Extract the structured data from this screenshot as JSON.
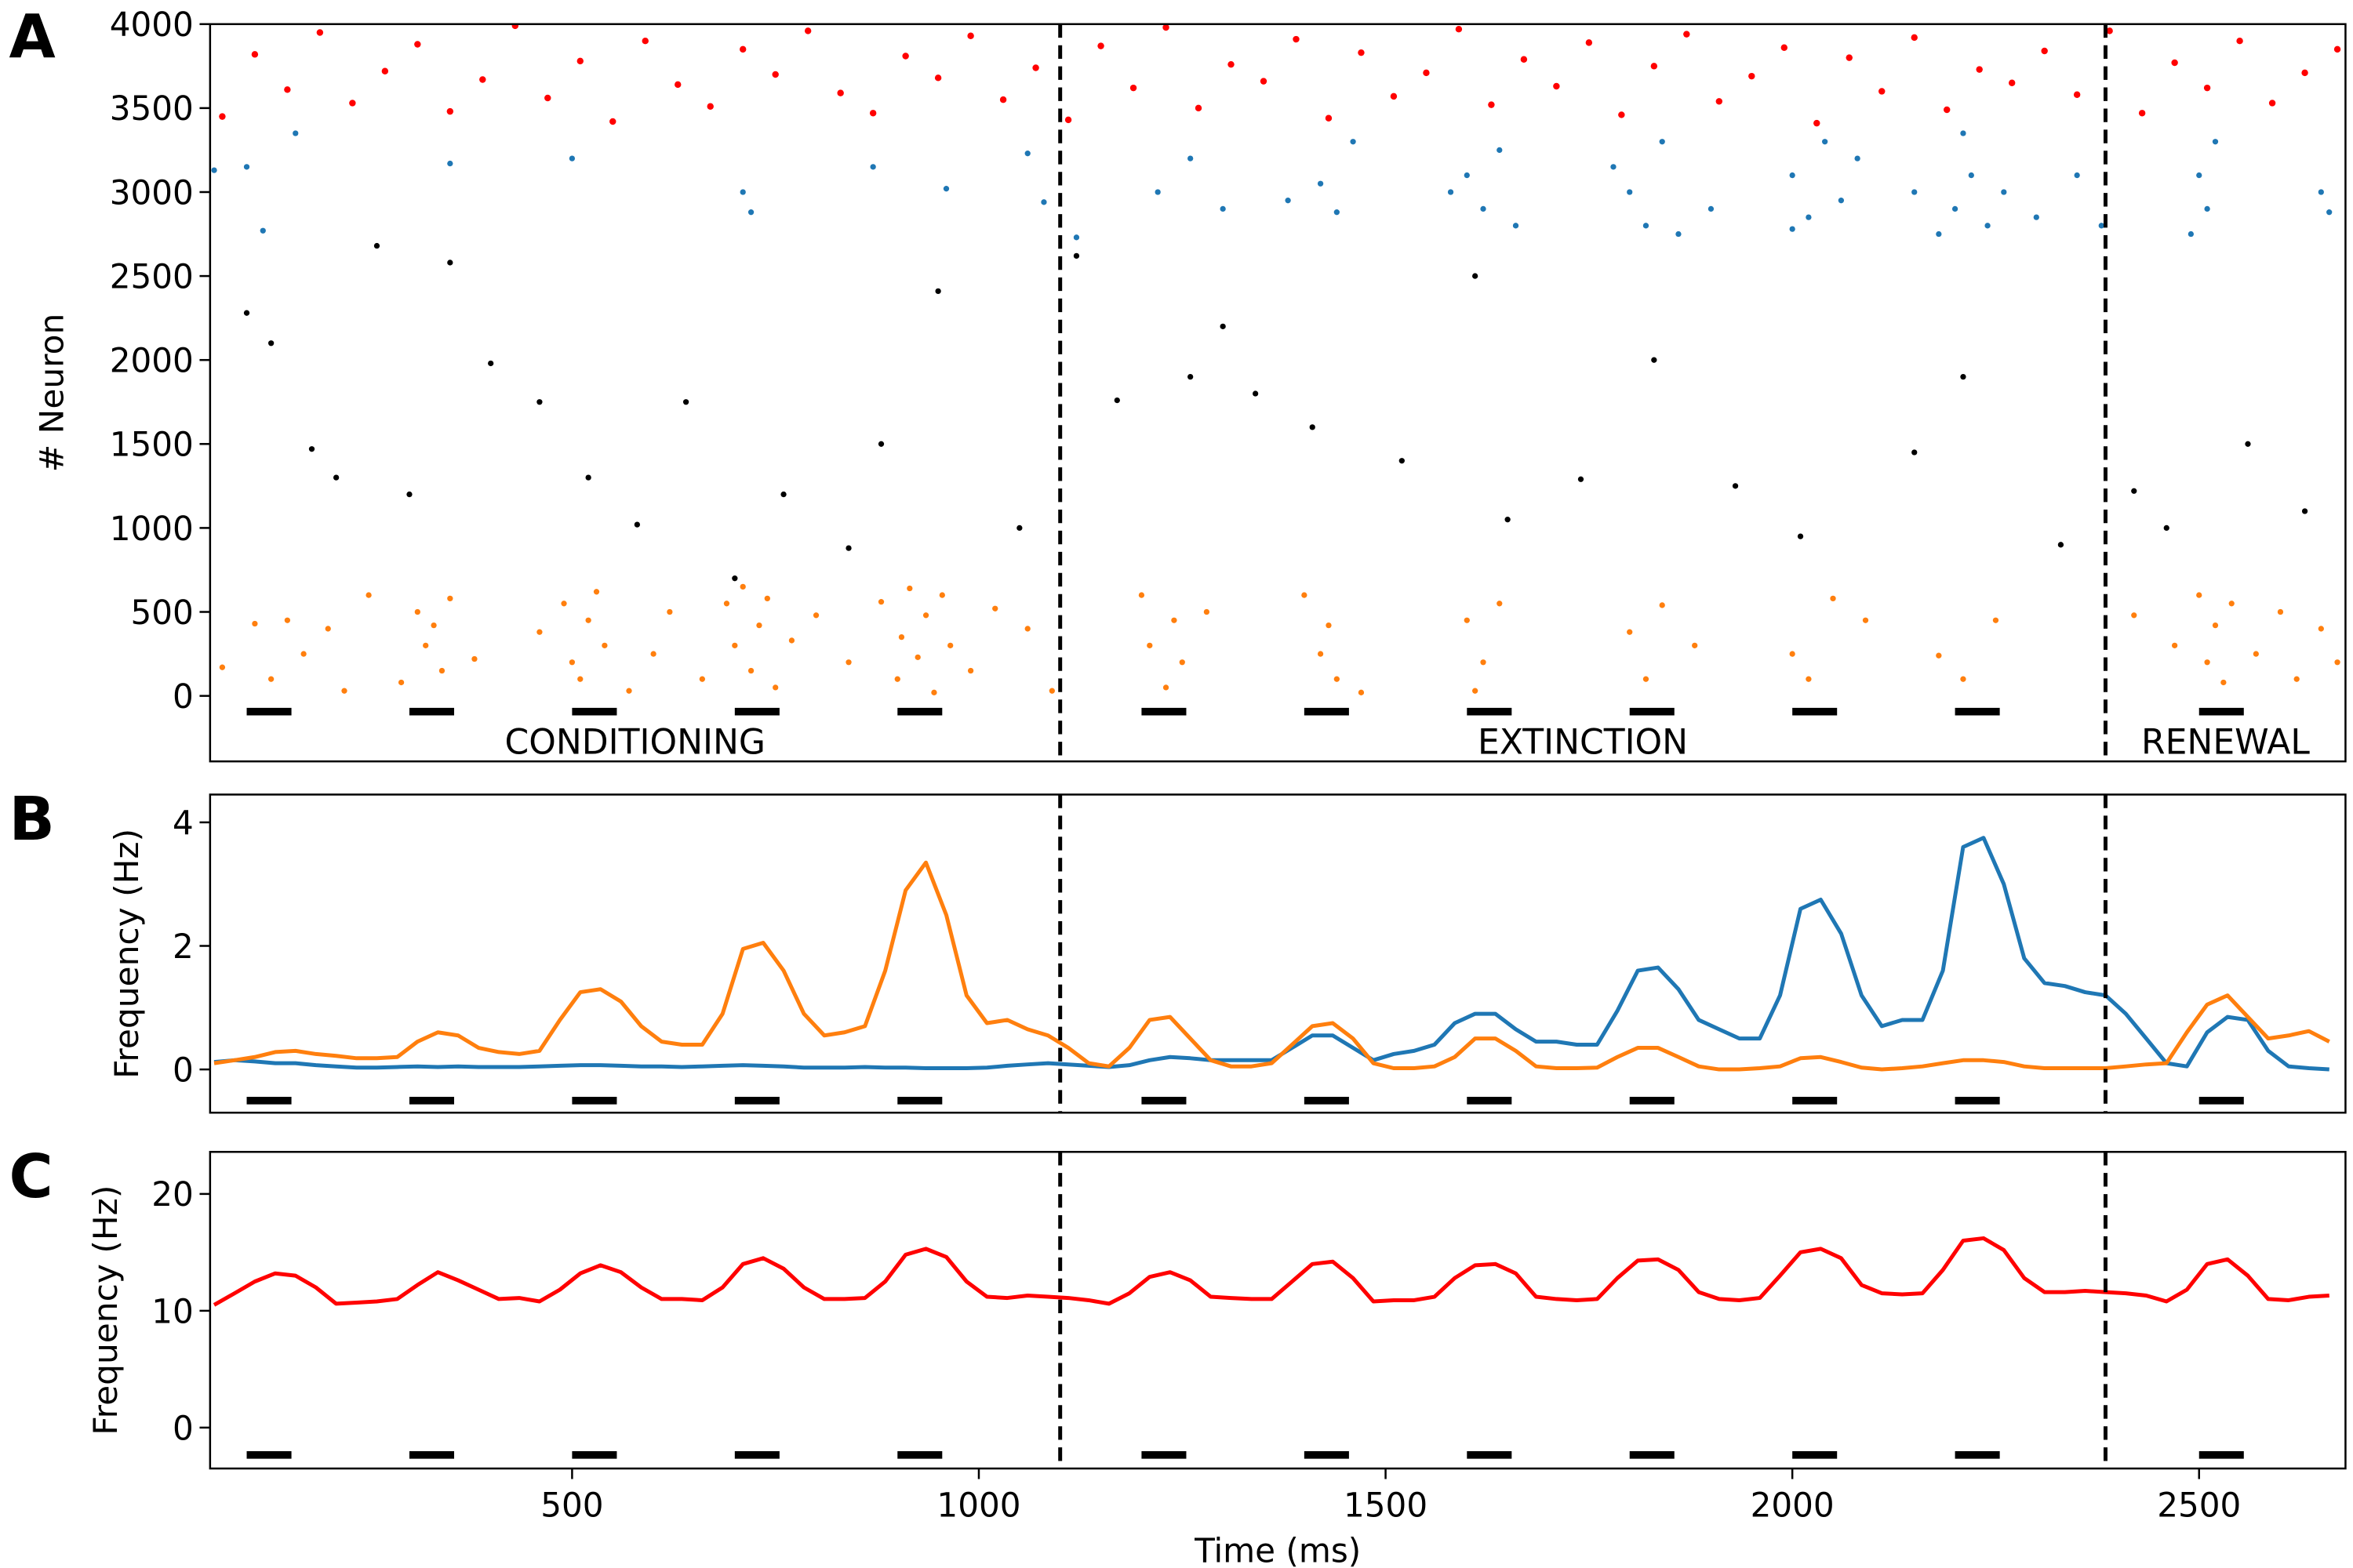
{
  "stimuli": [
    {
      "start": 100,
      "end": 155
    },
    {
      "start": 300,
      "end": 355
    },
    {
      "start": 500,
      "end": 555
    },
    {
      "start": 700,
      "end": 755
    },
    {
      "start": 900,
      "end": 955
    },
    {
      "start": 1200,
      "end": 1255
    },
    {
      "start": 1400,
      "end": 1455
    },
    {
      "start": 1600,
      "end": 1655
    },
    {
      "start": 1800,
      "end": 1855
    },
    {
      "start": 2000,
      "end": 2055
    },
    {
      "start": 2200,
      "end": 2255
    },
    {
      "start": 2500,
      "end": 2555
    }
  ],
  "boundaries": [
    1100,
    2385
  ],
  "chart_data": [
    {
      "type": "scatter",
      "panel": "A",
      "ylabel": "# Neuron",
      "xlim": [
        55,
        2680
      ],
      "ylim": [
        -390,
        4000
      ],
      "yticks": [
        0,
        500,
        1000,
        1500,
        2000,
        2500,
        3000,
        3500,
        4000
      ],
      "phases": [
        {
          "label": "CONDITIONING"
        },
        {
          "label": "EXTINCTION"
        },
        {
          "label": "RENEWAL"
        }
      ],
      "series": [
        {
          "color": "#ff0000",
          "x": [
            70,
            110,
            150,
            190,
            230,
            270,
            310,
            350,
            390,
            430,
            470,
            510,
            550,
            590,
            630,
            670,
            710,
            750,
            790,
            830,
            870,
            910,
            950,
            990,
            1030,
            1070,
            1110,
            1150,
            1190,
            1230,
            1270,
            1310,
            1350,
            1390,
            1430,
            1470,
            1510,
            1550,
            1590,
            1630,
            1670,
            1710,
            1750,
            1790,
            1830,
            1870,
            1910,
            1950,
            1990,
            2030,
            2070,
            2110,
            2150,
            2190,
            2230,
            2270,
            2310,
            2350,
            2390,
            2430,
            2470,
            2510,
            2550,
            2590,
            2630,
            2670
          ],
          "y": [
            3450,
            3820,
            3610,
            3950,
            3530,
            3720,
            3880,
            3480,
            3670,
            3990,
            3560,
            3780,
            3420,
            3900,
            3640,
            3510,
            3850,
            3700,
            3960,
            3590,
            3470,
            3810,
            3680,
            3930,
            3550,
            3740,
            3430,
            3870,
            3620,
            3980,
            3500,
            3760,
            3660,
            3910,
            3440,
            3830,
            3570,
            3710,
            3970,
            3520,
            3790,
            3630,
            3890,
            3460,
            3750,
            3940,
            3540,
            3690,
            3860,
            3410,
            3800,
            3600,
            3920,
            3490,
            3730,
            3650,
            3840,
            3580,
            3960,
            3470,
            3770,
            3620,
            3900,
            3530,
            3710,
            3850
          ]
        },
        {
          "color": "#1f77b4",
          "x": [
            60,
            100,
            120,
            160,
            350,
            500,
            710,
            720,
            870,
            960,
            1060,
            1080,
            1120,
            1220,
            1260,
            1300,
            1420,
            1440,
            1460,
            1380,
            1600,
            1620,
            1640,
            1660,
            1580,
            1800,
            1820,
            1840,
            1860,
            1780,
            1900,
            2000,
            2020,
            2040,
            2060,
            2000,
            2080,
            2150,
            2200,
            2220,
            2240,
            2210,
            2260,
            2180,
            2300,
            2350,
            2380,
            2500,
            2510,
            2520,
            2490,
            2650,
            2660
          ],
          "y": [
            3130,
            3150,
            2770,
            3350,
            3170,
            3200,
            3000,
            2880,
            3150,
            3020,
            3230,
            2940,
            2730,
            3000,
            3200,
            2900,
            3050,
            2880,
            3300,
            2950,
            3100,
            2900,
            3250,
            2800,
            3000,
            3000,
            2800,
            3300,
            2750,
            3150,
            2900,
            3100,
            2850,
            3300,
            2950,
            2780,
            3200,
            3000,
            2900,
            3100,
            2800,
            3350,
            3000,
            2750,
            2850,
            3100,
            2800,
            3100,
            2900,
            3300,
            2750,
            3000,
            2880
          ]
        },
        {
          "color": "#000000",
          "x": [
            100,
            130,
            180,
            210,
            260,
            300,
            350,
            400,
            460,
            520,
            580,
            640,
            700,
            760,
            840,
            880,
            950,
            1050,
            1120,
            1170,
            1260,
            1300,
            1340,
            1410,
            1520,
            1610,
            1650,
            1740,
            1830,
            1930,
            2010,
            2150,
            2210,
            2330,
            2420,
            2460,
            2560,
            2630
          ],
          "y": [
            2280,
            2100,
            1470,
            1300,
            2680,
            1200,
            2580,
            1980,
            1750,
            1300,
            1020,
            1750,
            700,
            1200,
            880,
            1500,
            2410,
            1000,
            2620,
            1760,
            1900,
            2200,
            1800,
            1600,
            1400,
            2500,
            1050,
            1290,
            2000,
            1250,
            950,
            1450,
            1900,
            900,
            1220,
            1000,
            1500,
            1100
          ]
        },
        {
          "color": "#ff7f0e",
          "x": [
            70,
            110,
            130,
            150,
            170,
            200,
            220,
            250,
            290,
            310,
            320,
            340,
            350,
            330,
            380,
            460,
            490,
            500,
            510,
            520,
            540,
            530,
            570,
            600,
            620,
            660,
            690,
            700,
            710,
            720,
            730,
            740,
            750,
            770,
            800,
            840,
            880,
            900,
            905,
            915,
            925,
            935,
            945,
            955,
            965,
            990,
            1020,
            1060,
            1090,
            1200,
            1210,
            1230,
            1240,
            1250,
            1280,
            1400,
            1420,
            1430,
            1440,
            1470,
            1600,
            1620,
            1640,
            1610,
            1800,
            1820,
            1840,
            1880,
            2000,
            2020,
            2050,
            2090,
            2180,
            2210,
            2250,
            2420,
            2470,
            2500,
            2510,
            2520,
            2530,
            2540,
            2570,
            2600,
            2620,
            2650,
            2670
          ],
          "y": [
            170,
            430,
            100,
            450,
            250,
            400,
            30,
            600,
            80,
            500,
            300,
            150,
            580,
            420,
            220,
            380,
            550,
            200,
            100,
            450,
            300,
            620,
            30,
            250,
            500,
            100,
            550,
            300,
            650,
            150,
            420,
            580,
            50,
            330,
            480,
            200,
            560,
            100,
            350,
            640,
            230,
            480,
            20,
            600,
            300,
            150,
            520,
            400,
            30,
            600,
            300,
            50,
            450,
            200,
            500,
            600,
            250,
            420,
            100,
            20,
            450,
            200,
            550,
            30,
            380,
            100,
            540,
            300,
            250,
            100,
            580,
            450,
            240,
            100,
            450,
            480,
            300,
            600,
            200,
            420,
            80,
            550,
            250,
            500,
            100,
            400,
            200
          ]
        }
      ]
    },
    {
      "type": "line",
      "panel": "B",
      "ylabel": "Frequency (Hz)",
      "xlim": [
        55,
        2680
      ],
      "ylim": [
        -0.7,
        4.45
      ],
      "yticks": [
        0,
        2,
        4
      ],
      "x": [
        60,
        85,
        110,
        135,
        160,
        185,
        210,
        235,
        260,
        285,
        310,
        335,
        360,
        385,
        410,
        435,
        460,
        485,
        510,
        535,
        560,
        585,
        610,
        635,
        660,
        685,
        710,
        735,
        760,
        785,
        810,
        835,
        860,
        885,
        910,
        935,
        960,
        985,
        1010,
        1035,
        1060,
        1085,
        1110,
        1135,
        1160,
        1185,
        1210,
        1235,
        1260,
        1285,
        1310,
        1335,
        1360,
        1385,
        1410,
        1435,
        1460,
        1485,
        1510,
        1535,
        1560,
        1585,
        1610,
        1635,
        1660,
        1685,
        1710,
        1735,
        1760,
        1785,
        1810,
        1835,
        1860,
        1885,
        1910,
        1935,
        1960,
        1985,
        2010,
        2035,
        2060,
        2085,
        2110,
        2135,
        2160,
        2185,
        2210,
        2235,
        2260,
        2285,
        2310,
        2335,
        2360,
        2385,
        2410,
        2435,
        2460,
        2485,
        2510,
        2535,
        2560,
        2585,
        2610,
        2635,
        2660
      ],
      "series": [
        {
          "color": "#1f77b4",
          "y": [
            0.12,
            0.15,
            0.13,
            0.1,
            0.1,
            0.07,
            0.05,
            0.03,
            0.03,
            0.04,
            0.05,
            0.04,
            0.05,
            0.04,
            0.04,
            0.04,
            0.05,
            0.06,
            0.07,
            0.07,
            0.06,
            0.05,
            0.05,
            0.04,
            0.05,
            0.06,
            0.07,
            0.06,
            0.05,
            0.03,
            0.03,
            0.03,
            0.04,
            0.03,
            0.03,
            0.02,
            0.02,
            0.02,
            0.03,
            0.06,
            0.08,
            0.1,
            0.08,
            0.06,
            0.04,
            0.07,
            0.15,
            0.2,
            0.18,
            0.15,
            0.15,
            0.15,
            0.15,
            0.35,
            0.55,
            0.55,
            0.35,
            0.15,
            0.25,
            0.3,
            0.4,
            0.75,
            0.9,
            0.9,
            0.65,
            0.45,
            0.45,
            0.4,
            0.4,
            0.95,
            1.6,
            1.65,
            1.3,
            0.8,
            0.65,
            0.5,
            0.5,
            1.2,
            2.6,
            2.75,
            2.2,
            1.2,
            0.7,
            0.8,
            0.8,
            1.6,
            3.6,
            3.75,
            3.0,
            1.8,
            1.4,
            1.35,
            1.25,
            1.2,
            0.9,
            0.5,
            0.1,
            0.05,
            0.6,
            0.85,
            0.8,
            0.3,
            0.05,
            0.02,
            0.0
          ]
        },
        {
          "color": "#ff7f0e",
          "y": [
            0.1,
            0.15,
            0.2,
            0.28,
            0.3,
            0.25,
            0.22,
            0.18,
            0.18,
            0.2,
            0.45,
            0.6,
            0.55,
            0.35,
            0.28,
            0.25,
            0.3,
            0.8,
            1.25,
            1.3,
            1.1,
            0.7,
            0.45,
            0.4,
            0.4,
            0.9,
            1.95,
            2.05,
            1.6,
            0.9,
            0.55,
            0.6,
            0.7,
            1.6,
            2.9,
            3.35,
            2.5,
            1.2,
            0.75,
            0.8,
            0.65,
            0.55,
            0.35,
            0.1,
            0.05,
            0.35,
            0.8,
            0.85,
            0.5,
            0.15,
            0.05,
            0.05,
            0.1,
            0.4,
            0.7,
            0.75,
            0.5,
            0.1,
            0.02,
            0.02,
            0.05,
            0.2,
            0.5,
            0.5,
            0.3,
            0.05,
            0.02,
            0.02,
            0.03,
            0.2,
            0.35,
            0.35,
            0.2,
            0.05,
            0.0,
            0.0,
            0.02,
            0.05,
            0.18,
            0.2,
            0.12,
            0.03,
            0.0,
            0.02,
            0.05,
            0.1,
            0.15,
            0.15,
            0.12,
            0.05,
            0.02,
            0.02,
            0.02,
            0.02,
            0.05,
            0.08,
            0.1,
            0.6,
            1.05,
            1.2,
            0.85,
            0.5,
            0.55,
            0.62,
            0.45
          ]
        }
      ]
    },
    {
      "type": "line",
      "panel": "C",
      "ylabel": "Frequency (Hz)",
      "xlabel": "Time (ms)",
      "xlim": [
        55,
        2680
      ],
      "ylim": [
        -3.5,
        23.6
      ],
      "yticks": [
        0,
        10,
        20
      ],
      "xticks": [
        500,
        1000,
        1500,
        2000,
        2500
      ],
      "x": [
        60,
        85,
        110,
        135,
        160,
        185,
        210,
        235,
        260,
        285,
        310,
        335,
        360,
        385,
        410,
        435,
        460,
        485,
        510,
        535,
        560,
        585,
        610,
        635,
        660,
        685,
        710,
        735,
        760,
        785,
        810,
        835,
        860,
        885,
        910,
        935,
        960,
        985,
        1010,
        1035,
        1060,
        1085,
        1110,
        1135,
        1160,
        1185,
        1210,
        1235,
        1260,
        1285,
        1310,
        1335,
        1360,
        1385,
        1410,
        1435,
        1460,
        1485,
        1510,
        1535,
        1560,
        1585,
        1610,
        1635,
        1660,
        1685,
        1710,
        1735,
        1760,
        1785,
        1810,
        1835,
        1860,
        1885,
        1910,
        1935,
        1960,
        1985,
        2010,
        2035,
        2060,
        2085,
        2110,
        2135,
        2160,
        2185,
        2210,
        2235,
        2260,
        2285,
        2310,
        2335,
        2360,
        2385,
        2410,
        2435,
        2460,
        2485,
        2510,
        2535,
        2560,
        2585,
        2610,
        2635,
        2660
      ],
      "series": [
        {
          "color": "#ff0000",
          "y": [
            10.5,
            11.5,
            12.5,
            13.2,
            13.0,
            12.0,
            10.6,
            10.7,
            10.8,
            11.0,
            12.2,
            13.3,
            12.6,
            11.8,
            11.0,
            11.1,
            10.8,
            11.8,
            13.2,
            13.9,
            13.3,
            12.0,
            11.0,
            11.0,
            10.9,
            12.0,
            14.0,
            14.5,
            13.6,
            12.0,
            11.0,
            11.0,
            11.1,
            12.5,
            14.8,
            15.3,
            14.6,
            12.5,
            11.2,
            11.1,
            11.3,
            11.2,
            11.1,
            10.9,
            10.6,
            11.5,
            12.9,
            13.3,
            12.6,
            11.2,
            11.1,
            11.0,
            11.0,
            12.5,
            14.0,
            14.2,
            12.8,
            10.8,
            10.9,
            10.9,
            11.2,
            12.8,
            13.9,
            14.0,
            13.2,
            11.2,
            11.0,
            10.9,
            11.0,
            12.8,
            14.3,
            14.4,
            13.5,
            11.6,
            11.0,
            10.9,
            11.1,
            13.0,
            15.0,
            15.3,
            14.5,
            12.2,
            11.5,
            11.4,
            11.5,
            13.5,
            16.0,
            16.2,
            15.2,
            12.8,
            11.6,
            11.6,
            11.7,
            11.6,
            11.5,
            11.3,
            10.8,
            11.8,
            14.0,
            14.4,
            13.0,
            11.0,
            10.9,
            11.2,
            11.3
          ]
        }
      ]
    }
  ]
}
